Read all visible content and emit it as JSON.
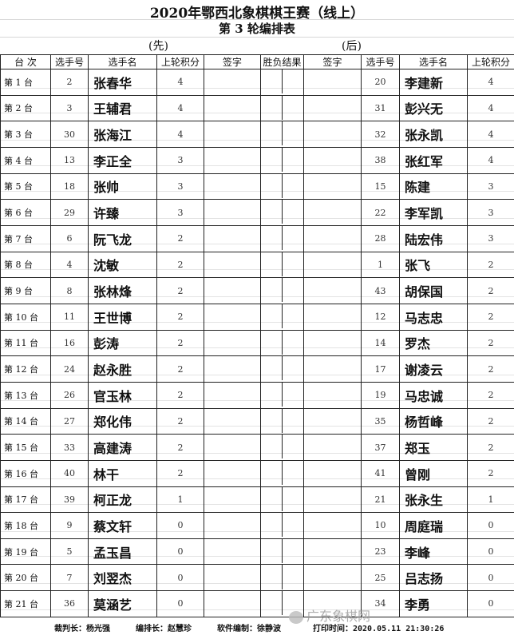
{
  "title": "2020年鄂西北象棋棋王赛（线上）",
  "subtitle": "第 3 轮编排表",
  "first_label": "(先)",
  "second_label": "(后)",
  "headers": [
    "台 次",
    "选手号",
    "选手名",
    "上轮积分",
    "签字",
    "胜负结果",
    "签字",
    "选手号",
    "选手名",
    "上轮积分"
  ],
  "rows": [
    {
      "board": "第  1 台",
      "a_no": "2",
      "a_name": "张春华",
      "a_pts": "4",
      "b_no": "20",
      "b_name": "李建新",
      "b_pts": "4"
    },
    {
      "board": "第  2 台",
      "a_no": "3",
      "a_name": "王辅君",
      "a_pts": "4",
      "b_no": "31",
      "b_name": "彭兴无",
      "b_pts": "4"
    },
    {
      "board": "第  3 台",
      "a_no": "30",
      "a_name": "张海江",
      "a_pts": "4",
      "b_no": "32",
      "b_name": "张永凯",
      "b_pts": "4"
    },
    {
      "board": "第  4 台",
      "a_no": "13",
      "a_name": "李正全",
      "a_pts": "3",
      "b_no": "38",
      "b_name": "张红军",
      "b_pts": "4"
    },
    {
      "board": "第  5 台",
      "a_no": "18",
      "a_name": "张帅",
      "a_pts": "3",
      "b_no": "15",
      "b_name": "陈建",
      "b_pts": "3"
    },
    {
      "board": "第  6 台",
      "a_no": "29",
      "a_name": "许臻",
      "a_pts": "3",
      "b_no": "22",
      "b_name": "李军凯",
      "b_pts": "3"
    },
    {
      "board": "第  7 台",
      "a_no": "6",
      "a_name": "阮飞龙",
      "a_pts": "2",
      "b_no": "28",
      "b_name": "陆宏伟",
      "b_pts": "3"
    },
    {
      "board": "第  8 台",
      "a_no": "4",
      "a_name": "沈敏",
      "a_pts": "2",
      "b_no": "1",
      "b_name": "张飞",
      "b_pts": "2"
    },
    {
      "board": "第  9 台",
      "a_no": "8",
      "a_name": "张林烽",
      "a_pts": "2",
      "b_no": "43",
      "b_name": "胡保国",
      "b_pts": "2"
    },
    {
      "board": "第 10 台",
      "a_no": "11",
      "a_name": "王世博",
      "a_pts": "2",
      "b_no": "12",
      "b_name": "马志忠",
      "b_pts": "2"
    },
    {
      "board": "第 11 台",
      "a_no": "16",
      "a_name": "彭涛",
      "a_pts": "2",
      "b_no": "14",
      "b_name": "罗杰",
      "b_pts": "2"
    },
    {
      "board": "第 12 台",
      "a_no": "24",
      "a_name": "赵永胜",
      "a_pts": "2",
      "b_no": "17",
      "b_name": "谢凌云",
      "b_pts": "2"
    },
    {
      "board": "第 13 台",
      "a_no": "26",
      "a_name": "官玉林",
      "a_pts": "2",
      "b_no": "19",
      "b_name": "马忠诚",
      "b_pts": "2"
    },
    {
      "board": "第 14 台",
      "a_no": "27",
      "a_name": "郑化伟",
      "a_pts": "2",
      "b_no": "35",
      "b_name": "杨哲峰",
      "b_pts": "2"
    },
    {
      "board": "第 15 台",
      "a_no": "33",
      "a_name": "高建涛",
      "a_pts": "2",
      "b_no": "37",
      "b_name": "郑玉",
      "b_pts": "2"
    },
    {
      "board": "第 16 台",
      "a_no": "40",
      "a_name": "林干",
      "a_pts": "2",
      "b_no": "41",
      "b_name": "曾刚",
      "b_pts": "2"
    },
    {
      "board": "第 17 台",
      "a_no": "39",
      "a_name": "柯正龙",
      "a_pts": "1",
      "b_no": "21",
      "b_name": "张永生",
      "b_pts": "1"
    },
    {
      "board": "第 18 台",
      "a_no": "9",
      "a_name": "蔡文轩",
      "a_pts": "0",
      "b_no": "10",
      "b_name": "周庭瑞",
      "b_pts": "0"
    },
    {
      "board": "第 19 台",
      "a_no": "5",
      "a_name": "孟玉昌",
      "a_pts": "0",
      "b_no": "23",
      "b_name": "李峰",
      "b_pts": "0"
    },
    {
      "board": "第 20 台",
      "a_no": "7",
      "a_name": "刘翌杰",
      "a_pts": "0",
      "b_no": "25",
      "b_name": "吕志扬",
      "b_pts": "0"
    },
    {
      "board": "第 21 台",
      "a_no": "36",
      "a_name": "莫涵艺",
      "a_pts": "0",
      "b_no": "34",
      "b_name": "李勇",
      "b_pts": "0"
    }
  ],
  "footer": {
    "chief_referee": "裁判长：杨光强",
    "arranger": "编排长：赵慧珍",
    "software": "软件编制：徐静波",
    "print_time": "打印时间：2020.05.11 21:30:26"
  },
  "watermark": "广东象棋网"
}
